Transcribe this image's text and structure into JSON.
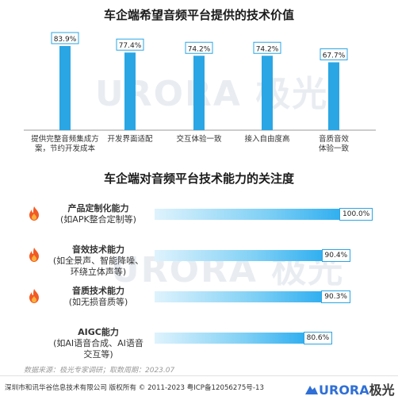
{
  "chart1": {
    "title": "车企端希望音频平台提供的技术价值",
    "chart_data": {
      "type": "bar",
      "categories": [
        "提供完整音频集成方案，节约开发成本",
        "开发界面适配",
        "交互体验一致",
        "接入自由度高",
        "音质音效体验一致"
      ],
      "category_lines": [
        [
          "提供完整音频集成方",
          "案，节约开发成本"
        ],
        [
          "开发界面适配"
        ],
        [
          "交互体验一致"
        ],
        [
          "接入自由度高"
        ],
        [
          "音质音效",
          "体验一致"
        ]
      ],
      "values": [
        83.9,
        77.4,
        74.2,
        74.2,
        67.7
      ],
      "value_labels": [
        "83.9%",
        "77.4%",
        "74.2%",
        "74.2%",
        "67.7%"
      ],
      "ylim": [
        0,
        100
      ],
      "bar_color": "#2aa6e4"
    }
  },
  "chart2": {
    "title": "车企端对音频平台技术能力的关注度",
    "chart_data": {
      "type": "bar",
      "orientation": "horizontal",
      "categories": [
        "产品定制化能力",
        "音效技术能力",
        "音质技术能力",
        "AIGC能力"
      ],
      "sublabels": [
        [
          "(如APK整合定制等)"
        ],
        [
          "(如全景声、智能降噪、",
          "环绕立体声等)"
        ],
        [
          "(如无损音质等)"
        ],
        [
          "(如AI语音合成、AI语音交互等)"
        ]
      ],
      "values": [
        100.0,
        90.4,
        90.3,
        80.6
      ],
      "value_labels": [
        "100.0%",
        "90.4%",
        "90.3%",
        "80.6%"
      ],
      "xlim": [
        0,
        100
      ],
      "icons": [
        "flame-icon",
        "flame-icon",
        "flame-icon",
        ""
      ]
    }
  },
  "watermark": "URORA 极光",
  "source": "数据来源：极光专家调研；取数周期：2023.07",
  "footer": "深圳市和讯华谷信息技术有限公司 版权所有 © 2011-2023 粤ICP备12056275号-13",
  "logo": {
    "brand": "URORA",
    "cn": "极光"
  }
}
